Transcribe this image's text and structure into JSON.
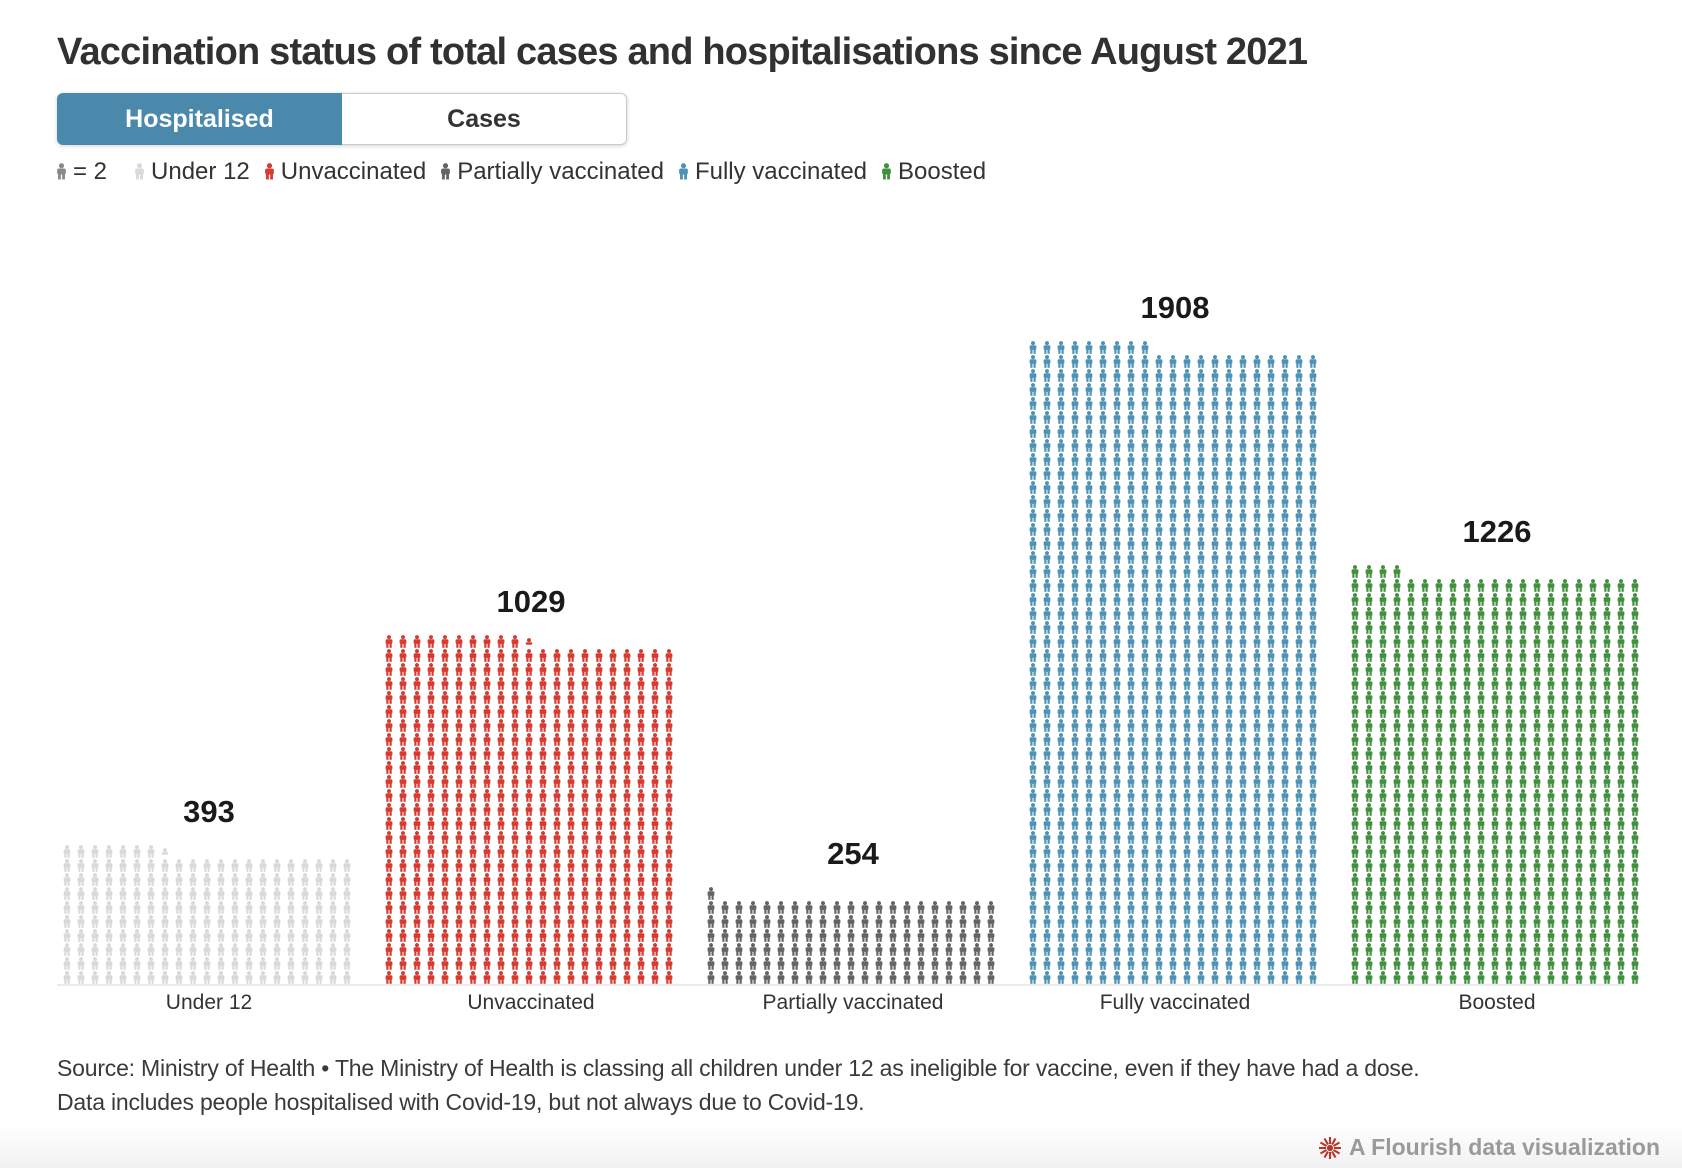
{
  "header": {
    "title": "Vaccination status of total cases and hospitalisations since August 2021"
  },
  "tabs": [
    {
      "label": "Hospitalised",
      "selected": true
    },
    {
      "label": "Cases",
      "selected": false
    }
  ],
  "legend": {
    "key_label": "= 2",
    "key_color": "#8a8a8a",
    "items": [
      {
        "label": "Under 12",
        "color": "#d9d9d9"
      },
      {
        "label": "Unvaccinated",
        "color": "#d63a30"
      },
      {
        "label": "Partially vaccinated",
        "color": "#646464"
      },
      {
        "label": "Fully vaccinated",
        "color": "#4e92b5"
      },
      {
        "label": "Boosted",
        "color": "#41903e"
      }
    ]
  },
  "chart_data": {
    "type": "pictogram",
    "selected_view": "Hospitalised",
    "unit_per_icon": 2,
    "columns_per_group": 21,
    "categories": [
      "Under 12",
      "Unvaccinated",
      "Partially vaccinated",
      "Fully vaccinated",
      "Boosted"
    ],
    "values": [
      393,
      1029,
      254,
      1908,
      1226
    ],
    "colors": [
      "#d9d9d9",
      "#d63a30",
      "#646464",
      "#4e92b5",
      "#41903e"
    ],
    "icon": "person-icon"
  },
  "footer": {
    "source_line1": "Source: Ministry of Health • The Ministry of Health is classing all children under 12 as ineligible for vaccine, even if they have had a dose.",
    "source_line2": "Data includes people hospitalised with Covid-19, but not always due to Covid-19.",
    "credit": "A Flourish data visualization"
  }
}
